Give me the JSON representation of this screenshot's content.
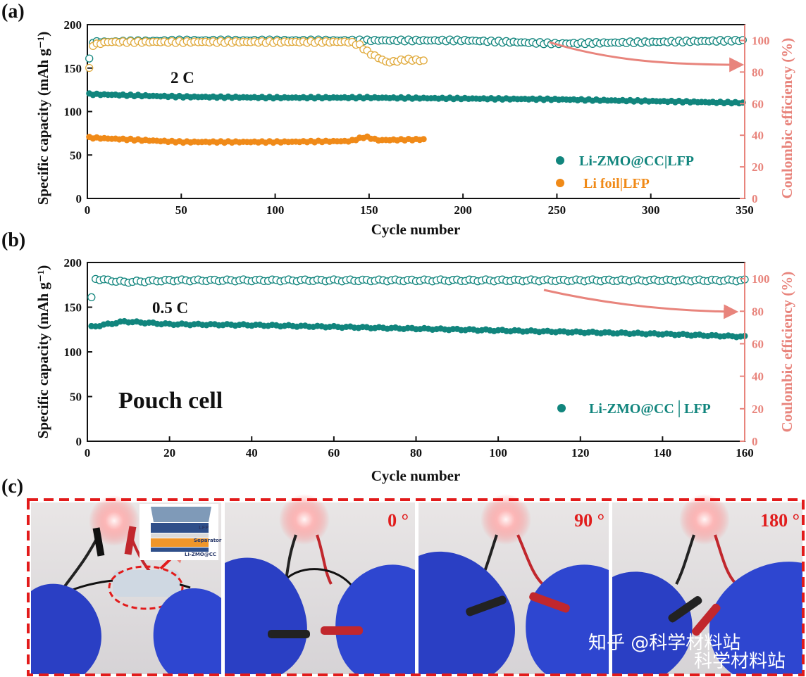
{
  "figure": {
    "panels": [
      "(a)",
      "(b)",
      "(c)"
    ]
  },
  "chart_data": [
    {
      "id": "a",
      "type": "scatter",
      "xlabel": "Cycle number",
      "ylabel": "Specific capacity (mAh g⁻¹)",
      "y2label": "Coulombic efficiency (%)",
      "xlim": [
        0,
        350
      ],
      "ylim": [
        0,
        200
      ],
      "y2lim": [
        0,
        110
      ],
      "xticks": [
        0,
        50,
        100,
        150,
        200,
        250,
        300,
        350
      ],
      "yticks": [
        0,
        50,
        100,
        150,
        200
      ],
      "y2ticks": [
        0,
        20,
        40,
        60,
        80,
        100
      ],
      "annotation": "2 C",
      "series": [
        {
          "name": "Li-ZMO@CC|LFP",
          "role": "capacity",
          "color": "#11857d",
          "filled": true,
          "x": [
            1,
            50,
            100,
            150,
            200,
            250,
            300,
            350
          ],
          "values": [
            120,
            117,
            116,
            116,
            115,
            114,
            112,
            110
          ]
        },
        {
          "name": "Li foil|LFP",
          "role": "capacity",
          "color": "#f08a18",
          "filled": true,
          "x": [
            1,
            50,
            100,
            140,
            148,
            155,
            180
          ],
          "values": [
            70,
            65,
            65,
            66,
            71,
            67,
            68
          ]
        },
        {
          "name": "Li-ZMO@CC|LFP CE",
          "role": "efficiency",
          "color": "#11857d",
          "filled": false,
          "x": [
            1,
            2,
            3,
            50,
            100,
            150,
            200,
            250,
            300,
            350
          ],
          "values": [
            88,
            95,
            99,
            100,
            100,
            100,
            100,
            98,
            99,
            100
          ]
        },
        {
          "name": "Li foil|LFP CE",
          "role": "efficiency",
          "color": "#e0a93a",
          "filled": false,
          "x": [
            1,
            3,
            10,
            50,
            100,
            140,
            145,
            150,
            160,
            170,
            180
          ],
          "values": [
            82,
            97,
            99,
            99,
            99,
            99,
            97,
            92,
            86,
            88,
            87
          ]
        }
      ],
      "legend": [
        {
          "label": "Li-ZMO@CC|LFP",
          "color": "#11857d"
        },
        {
          "label": "Li foil|LFP",
          "color": "#f08a18"
        }
      ]
    },
    {
      "id": "b",
      "type": "scatter",
      "xlabel": "Cycle number",
      "ylabel": "Specific capacity (mAh g⁻¹)",
      "y2label": "Coulombic efficiency (%)",
      "xlim": [
        0,
        160
      ],
      "ylim": [
        0,
        200
      ],
      "y2lim": [
        0,
        110
      ],
      "xticks": [
        0,
        20,
        40,
        60,
        80,
        100,
        120,
        140,
        160
      ],
      "yticks": [
        0,
        50,
        100,
        150,
        200
      ],
      "y2ticks": [
        0,
        20,
        40,
        60,
        80,
        100
      ],
      "annotation": "0.5 C",
      "annotation2": "Pouch cell",
      "series": [
        {
          "name": "Li-ZMO@CC|LFP",
          "role": "capacity",
          "color": "#11857d",
          "filled": true,
          "x": [
            1,
            5,
            9,
            20,
            40,
            60,
            80,
            100,
            120,
            140,
            160
          ],
          "values": [
            128,
            131,
            134,
            131,
            130,
            128,
            126,
            124,
            122,
            120,
            117
          ]
        },
        {
          "name": "Li-ZMO@CC|LFP CE",
          "role": "efficiency",
          "color": "#11857d",
          "filled": false,
          "x": [
            1,
            2,
            5,
            9,
            20,
            60,
            100,
            140,
            160
          ],
          "values": [
            88,
            100,
            99,
            98,
            99,
            99,
            99,
            99,
            99
          ]
        }
      ],
      "legend": [
        {
          "label": "Li-ZMO@CC│LFP",
          "color": "#11857d"
        }
      ]
    }
  ],
  "photos": {
    "bend_angles": [
      "0 °",
      "90 °",
      "180 °"
    ],
    "inset_labels": [
      "LFP",
      "Separator",
      "Li-ZMO@CC"
    ],
    "watermark": "知乎 @科学材料站",
    "watermark2": "科学材料站"
  }
}
